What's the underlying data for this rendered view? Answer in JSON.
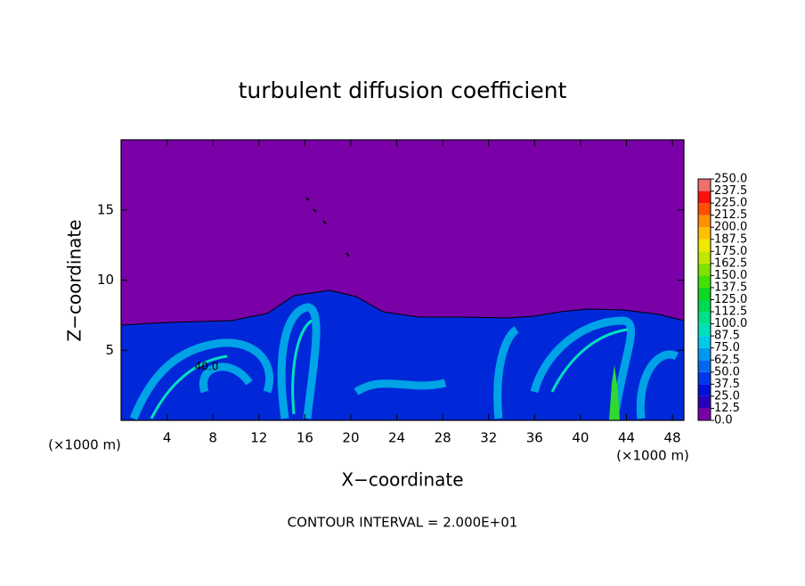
{
  "chart_data": {
    "type": "contour",
    "title": "turbulent diffusion coefficient",
    "xlabel": "X−coordinate",
    "ylabel": "Z−coordinate",
    "x_unit_labels": [
      "(×1000 m)",
      "(×1000 m)"
    ],
    "footer": "CONTOUR INTERVAL = 2.000E+01",
    "annotations": [
      "40.0"
    ],
    "xlim": [
      0,
      49
    ],
    "ylim": [
      0,
      20
    ],
    "xticks": [
      4,
      8,
      12,
      16,
      20,
      24,
      28,
      32,
      36,
      40,
      44,
      48
    ],
    "yticks": [
      5,
      10,
      15
    ],
    "colorbar": {
      "levels": [
        {
          "value": 0,
          "label": "0.0"
        },
        {
          "value": 12.5,
          "label": "12.5"
        },
        {
          "value": 25,
          "label": "25.0"
        },
        {
          "value": 37.5,
          "label": "37.5"
        },
        {
          "value": 50,
          "label": "50.0"
        },
        {
          "value": 62.5,
          "label": "62.5"
        },
        {
          "value": 75,
          "label": "75.0"
        },
        {
          "value": 87.5,
          "label": "87.5"
        },
        {
          "value": 100,
          "label": "100.0"
        },
        {
          "value": 112.5,
          "label": "112.5"
        },
        {
          "value": 125,
          "label": "125.0"
        },
        {
          "value": 137.5,
          "label": "137.5"
        },
        {
          "value": 150,
          "label": "150.0"
        },
        {
          "value": 162.5,
          "label": "162.5"
        },
        {
          "value": 175,
          "label": "175.0"
        },
        {
          "value": 187.5,
          "label": "187.5"
        },
        {
          "value": 200,
          "label": "200.0"
        },
        {
          "value": 212.5,
          "label": "212.5"
        },
        {
          "value": 225,
          "label": "225.0"
        },
        {
          "value": 237.5,
          "label": "237.5"
        },
        {
          "value": 250,
          "label": "250.0"
        }
      ],
      "colors": [
        "#7a00a8",
        "#2800b8",
        "#0010d8",
        "#0038e8",
        "#0068f0",
        "#0098f0",
        "#00c8e8",
        "#00e0b8",
        "#00e088",
        "#00d850",
        "#10d820",
        "#40e000",
        "#80e000",
        "#c0e800",
        "#f0e800",
        "#ffc000",
        "#ff9000",
        "#ff5000",
        "#ff1010",
        "#f07070"
      ]
    }
  }
}
